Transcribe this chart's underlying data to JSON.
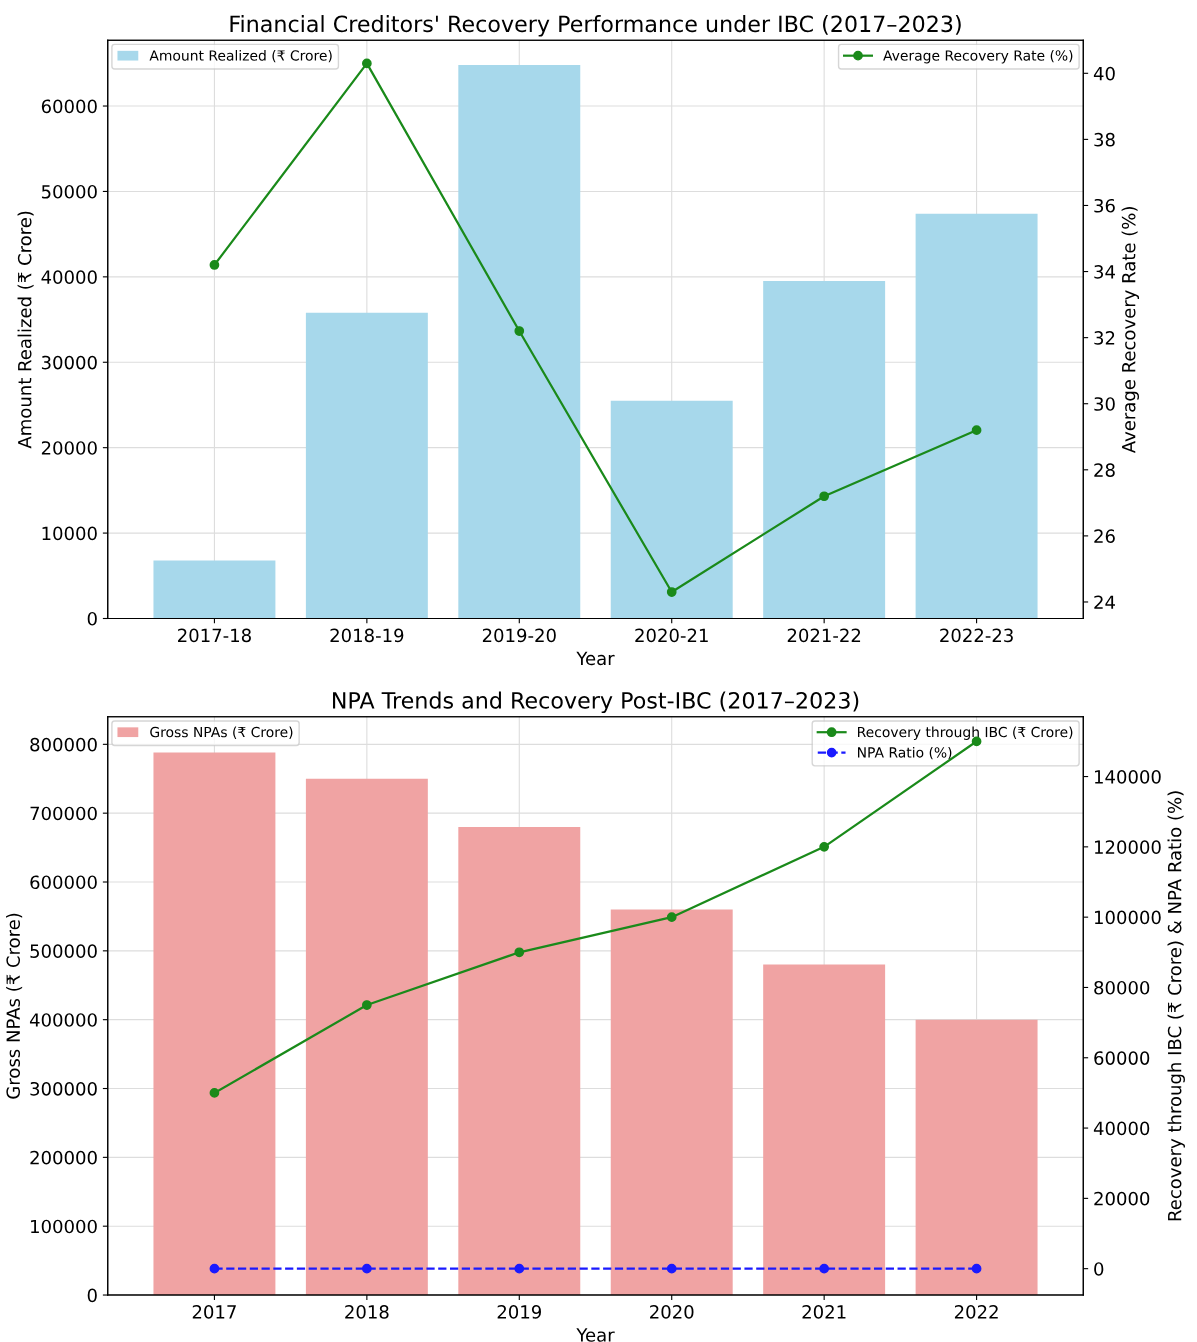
{
  "chart_data": [
    {
      "type": "bar",
      "title": "Financial Creditors' Recovery Performance under IBC (2017–2023)",
      "xlabel": "Year",
      "ylabel": "Amount Realized (₹ Crore)",
      "y2label": "Average Recovery Rate (%)",
      "categories": [
        "2017-18",
        "2018-19",
        "2019-20",
        "2020-21",
        "2021-22",
        "2022-23"
      ],
      "series": [
        {
          "name": "Amount Realized (₹ Crore)",
          "color": "#a7d8eb",
          "values": [
            6800,
            35800,
            64800,
            25500,
            39500,
            47400
          ]
        },
        {
          "name": "Average Recovery Rate (%)",
          "type": "line",
          "axis": "y2",
          "color": "#1a8a1a",
          "marker": "circle",
          "line_style": "solid",
          "values": [
            34.2,
            40.3,
            32.2,
            24.3,
            27.2,
            29.2
          ]
        }
      ],
      "ylim": [
        0,
        67700
      ],
      "yticks": [
        0,
        10000,
        20000,
        30000,
        40000,
        50000,
        60000
      ],
      "y2lim": [
        23.5,
        41
      ],
      "y2ticks": [
        24,
        26,
        28,
        30,
        32,
        34,
        36,
        38,
        40
      ],
      "grid": true,
      "legend": "top"
    },
    {
      "type": "bar",
      "title": "NPA Trends and Recovery Post-IBC (2017–2023)",
      "xlabel": "Year",
      "ylabel": "Gross NPAs (₹ Crore)",
      "y2label": "Recovery through IBC (₹ Crore) & NPA Ratio (%)",
      "categories": [
        "2017",
        "2018",
        "2019",
        "2020",
        "2021",
        "2022"
      ],
      "series": [
        {
          "name": "Gross NPAs (₹ Crore)",
          "color": "#f0a3a3",
          "values": [
            788000,
            750000,
            680000,
            560000,
            480000,
            400000
          ]
        },
        {
          "name": "Recovery through IBC (₹ Crore)",
          "type": "line",
          "axis": "y2",
          "color": "#1a8a1a",
          "marker": "circle",
          "line_style": "solid",
          "values": [
            50000,
            75000,
            90000,
            100000,
            120000,
            150000
          ]
        },
        {
          "name": "NPA Ratio (%)",
          "type": "line",
          "axis": "y2",
          "color": "#1a1aff",
          "marker": "circle",
          "line_style": "dashed",
          "values": [
            0,
            0,
            0,
            0,
            0,
            0
          ]
        }
      ],
      "ylim": [
        0,
        840000
      ],
      "yticks": [
        0,
        100000,
        200000,
        300000,
        400000,
        500000,
        600000,
        700000,
        800000
      ],
      "y2lim": [
        -7500,
        157000
      ],
      "y2ticks": [
        0,
        20000,
        40000,
        60000,
        80000,
        100000,
        120000,
        140000
      ],
      "grid": true,
      "legend": "top"
    }
  ]
}
